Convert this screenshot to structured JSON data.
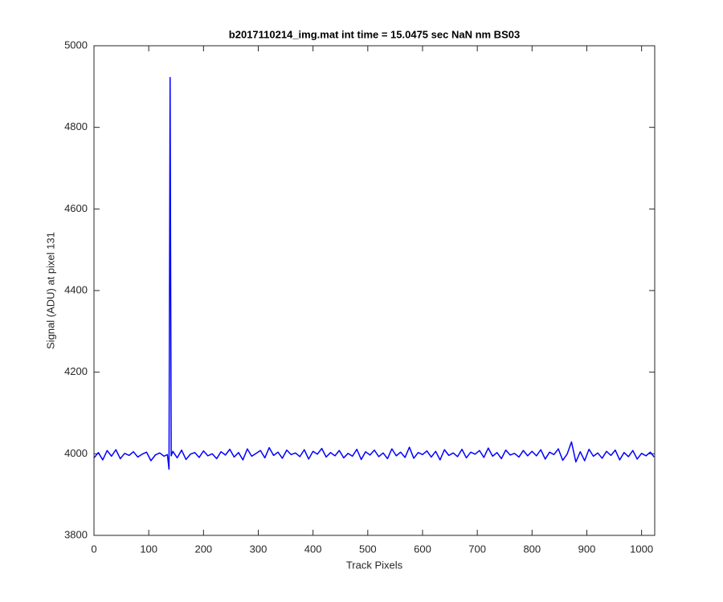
{
  "chart_data": {
    "type": "line",
    "title": "b2017110214_img.mat int time = 15.0475 sec  NaN nm BS03",
    "xlabel": "Track Pixels",
    "ylabel": "Signal (ADU) at pixel 131",
    "color": "#0000ff",
    "x": [
      0,
      8,
      16,
      24,
      32,
      40,
      48,
      56,
      64,
      72,
      80,
      88,
      96,
      104,
      112,
      120,
      128,
      134,
      137,
      139,
      141,
      144,
      152,
      160,
      168,
      176,
      184,
      192,
      200,
      208,
      216,
      224,
      232,
      240,
      248,
      256,
      264,
      272,
      280,
      288,
      296,
      304,
      312,
      320,
      328,
      336,
      344,
      352,
      360,
      368,
      376,
      384,
      392,
      400,
      408,
      416,
      424,
      432,
      440,
      448,
      456,
      464,
      472,
      480,
      488,
      496,
      504,
      512,
      520,
      528,
      536,
      544,
      552,
      560,
      568,
      576,
      584,
      592,
      600,
      608,
      616,
      624,
      632,
      640,
      648,
      656,
      664,
      672,
      680,
      688,
      696,
      704,
      712,
      720,
      728,
      736,
      744,
      752,
      760,
      768,
      776,
      784,
      792,
      800,
      808,
      816,
      824,
      832,
      840,
      848,
      856,
      864,
      872,
      880,
      888,
      896,
      904,
      912,
      920,
      928,
      936,
      944,
      952,
      960,
      968,
      976,
      984,
      992,
      1000,
      1008,
      1016,
      1023
    ],
    "values": [
      3990,
      4003,
      3985,
      4008,
      3994,
      4010,
      3988,
      4001,
      3996,
      4005,
      3992,
      3999,
      4004,
      3983,
      3997,
      4002,
      3994,
      3998,
      3962,
      4922,
      3995,
      4006,
      3990,
      4009,
      3986,
      3999,
      4003,
      3991,
      4007,
      3995,
      4000,
      3988,
      4005,
      3997,
      4011,
      3992,
      4003,
      3985,
      4012,
      3994,
      4001,
      4008,
      3990,
      4015,
      3996,
      4004,
      3989,
      4009,
      3998,
      4002,
      3993,
      4010,
      3987,
      4006,
      3999,
      4013,
      3992,
      4003,
      3995,
      4008,
      3990,
      4001,
      3994,
      4011,
      3986,
      4005,
      3997,
      4009,
      3993,
      4002,
      3988,
      4012,
      3995,
      4004,
      3991,
      4016,
      3989,
      4003,
      3998,
      4007,
      3992,
      4006,
      3985,
      4010,
      3996,
      4002,
      3993,
      4011,
      3990,
      4004,
      3999,
      4008,
      3991,
      4014,
      3994,
      4003,
      3988,
      4009,
      3997,
      4001,
      3992,
      4008,
      3995,
      4006,
      3995,
      4010,
      3987,
      4004,
      3998,
      4012,
      3984,
      3999,
      4029,
      3980,
      4005,
      3983,
      4011,
      3994,
      4002,
      3989,
      4006,
      3996,
      4009,
      3985,
      4003,
      3993,
      4008,
      3987,
      4001,
      3995,
      4004,
      3992
    ],
    "xlim": [
      0,
      1024
    ],
    "ylim": [
      3800,
      5000
    ],
    "xticks": [
      0,
      100,
      200,
      300,
      400,
      500,
      600,
      700,
      800,
      900,
      1000
    ],
    "yticks": [
      3800,
      4000,
      4200,
      4400,
      4600,
      4800,
      5000
    ]
  }
}
